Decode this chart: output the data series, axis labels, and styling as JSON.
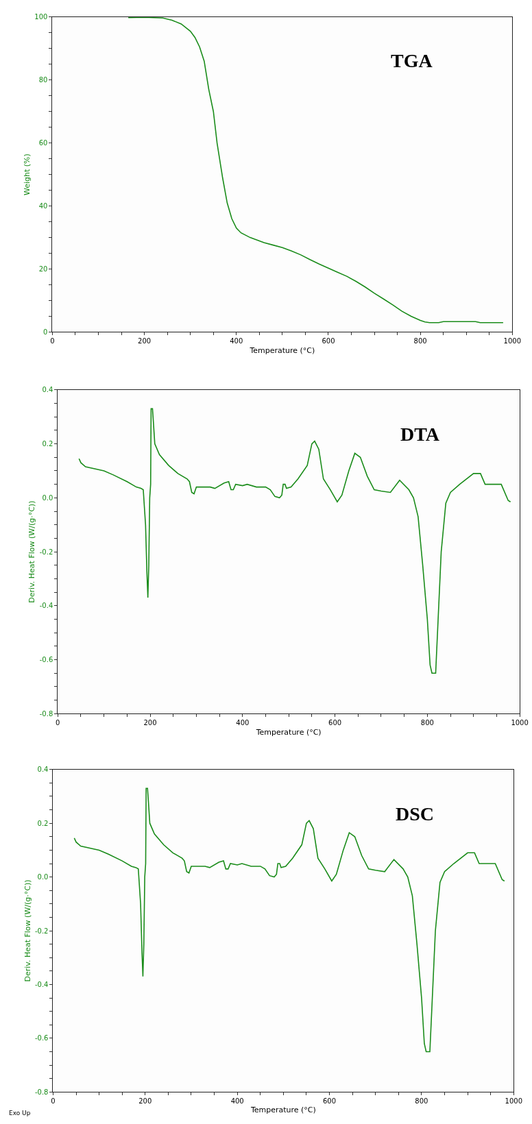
{
  "chart_data": [
    {
      "type": "line",
      "title": "TGA",
      "xlabel": "Temperature (°C)",
      "ylabel": "Weight (%)",
      "color": "#1a8c1a",
      "xlim": [
        0,
        1000
      ],
      "ylim": [
        0,
        100
      ],
      "xticks": [
        0,
        {
          "value": 50,
          "label": null
        },
        {
          "value": 100,
          "label": null
        },
        {
          "value": 150,
          "label": null
        },
        200,
        {
          "value": 250,
          "label": null
        },
        {
          "value": 300,
          "label": null
        },
        {
          "value": 350,
          "label": null
        },
        400,
        {
          "value": 450,
          "label": null
        },
        {
          "value": 500,
          "label": null
        },
        {
          "value": 550,
          "label": null
        },
        600,
        {
          "value": 650,
          "label": null
        },
        {
          "value": 700,
          "label": null
        },
        {
          "value": 750,
          "label": null
        },
        800,
        {
          "value": 850,
          "label": null
        },
        {
          "value": 900,
          "label": null
        },
        {
          "value": 950,
          "label": null
        },
        1000
      ],
      "yticks": [
        0,
        {
          "value": 5,
          "label": null
        },
        {
          "value": 10,
          "label": null
        },
        {
          "value": 15,
          "label": null
        },
        20,
        {
          "value": 25,
          "label": null
        },
        {
          "value": 30,
          "label": null
        },
        {
          "value": 35,
          "label": null
        },
        40,
        {
          "value": 45,
          "label": null
        },
        {
          "value": 50,
          "label": null
        },
        {
          "value": 55,
          "label": null
        },
        60,
        {
          "value": 65,
          "label": null
        },
        {
          "value": 70,
          "label": null
        },
        {
          "value": 75,
          "label": null
        },
        80,
        {
          "value": 85,
          "label": null
        },
        {
          "value": 90,
          "label": null
        },
        {
          "value": 95,
          "label": null
        },
        100
      ],
      "x": [
        165,
        200,
        240,
        260,
        280,
        300,
        310,
        320,
        330,
        340,
        350,
        358,
        370,
        380,
        390,
        400,
        410,
        430,
        460,
        480,
        500,
        520,
        540,
        560,
        580,
        600,
        620,
        640,
        660,
        680,
        700,
        720,
        740,
        760,
        780,
        800,
        810,
        820,
        840,
        850,
        920,
        930,
        980
      ],
      "values": [
        99.8,
        99.9,
        99.7,
        99,
        97.8,
        95.5,
        93.5,
        90.5,
        86,
        77,
        70,
        60,
        49,
        41,
        36,
        33,
        31.5,
        30,
        28.4,
        27.6,
        26.8,
        25.7,
        24.5,
        23,
        21.6,
        20.3,
        19,
        17.7,
        16.1,
        14.3,
        12.3,
        10.5,
        8.6,
        6.6,
        5,
        3.7,
        3.2,
        3.0,
        3.0,
        3.3,
        3.3,
        3.0,
        3.0
      ]
    },
    {
      "type": "line",
      "title": "DTA",
      "xlabel": "Temperature (°C)",
      "ylabel": "Deriv. Heat Flow (W/(g·°C))",
      "color": "#1a8c1a",
      "xlim": [
        0,
        1000
      ],
      "ylim": [
        -0.8,
        0.4
      ],
      "xticks": [
        0,
        {
          "value": 50,
          "label": null
        },
        {
          "value": 100,
          "label": null
        },
        {
          "value": 150,
          "label": null
        },
        200,
        {
          "value": 250,
          "label": null
        },
        {
          "value": 300,
          "label": null
        },
        {
          "value": 350,
          "label": null
        },
        400,
        {
          "value": 450,
          "label": null
        },
        {
          "value": 500,
          "label": null
        },
        {
          "value": 550,
          "label": null
        },
        600,
        {
          "value": 650,
          "label": null
        },
        {
          "value": 700,
          "label": null
        },
        {
          "value": 750,
          "label": null
        },
        800,
        {
          "value": 850,
          "label": null
        },
        {
          "value": 900,
          "label": null
        },
        {
          "value": 950,
          "label": null
        },
        1000
      ],
      "yticks": [
        -0.8,
        {
          "value": -0.75,
          "label": null
        },
        {
          "value": -0.7,
          "label": null
        },
        {
          "value": -0.65,
          "label": null
        },
        -0.6,
        {
          "value": -0.55,
          "label": null
        },
        {
          "value": -0.5,
          "label": null
        },
        {
          "value": -0.45,
          "label": null
        },
        -0.4,
        {
          "value": -0.35,
          "label": null
        },
        {
          "value": -0.3,
          "label": null
        },
        {
          "value": -0.25,
          "label": null
        },
        -0.2,
        {
          "value": -0.15,
          "label": null
        },
        {
          "value": -0.1,
          "label": null
        },
        {
          "value": -0.05,
          "label": null
        },
        {
          "value": 0,
          "label": "0.0"
        },
        {
          "value": 0.05,
          "label": null
        },
        {
          "value": 0.1,
          "label": null
        },
        {
          "value": 0.15,
          "label": null
        },
        0.2,
        {
          "value": 0.25,
          "label": null
        },
        {
          "value": 0.3,
          "label": null
        },
        {
          "value": 0.35,
          "label": null
        },
        0.4
      ],
      "x": [
        46,
        50,
        60,
        100,
        120,
        150,
        170,
        180,
        185,
        190,
        193,
        195,
        197,
        199,
        201,
        202,
        205,
        207,
        210,
        220,
        240,
        260,
        280,
        285,
        290,
        295,
        300,
        330,
        340,
        360,
        370,
        375,
        380,
        385,
        400,
        410,
        430,
        450,
        460,
        470,
        480,
        485,
        488,
        492,
        495,
        505,
        520,
        540,
        550,
        556,
        565,
        575,
        590,
        605,
        615,
        630,
        643,
        655,
        670,
        685,
        700,
        720,
        740,
        760,
        770,
        780,
        790,
        800,
        806,
        810,
        818,
        822,
        830,
        840,
        850,
        870,
        900,
        915,
        925,
        960,
        975,
        980
      ],
      "values": [
        0.145,
        0.13,
        0.115,
        0.1,
        0.085,
        0.06,
        0.04,
        0.035,
        0.03,
        -0.1,
        -0.28,
        -0.37,
        -0.25,
        0.0,
        0.05,
        0.33,
        0.33,
        0.28,
        0.2,
        0.16,
        0.12,
        0.09,
        0.07,
        0.06,
        0.02,
        0.015,
        0.04,
        0.04,
        0.035,
        0.055,
        0.06,
        0.03,
        0.03,
        0.05,
        0.045,
        0.05,
        0.04,
        0.04,
        0.03,
        0.005,
        0.0,
        0.01,
        0.05,
        0.05,
        0.035,
        0.04,
        0.07,
        0.12,
        0.2,
        0.21,
        0.18,
        0.07,
        0.03,
        -0.015,
        0.01,
        0.1,
        0.165,
        0.15,
        0.08,
        0.03,
        0.025,
        0.02,
        0.065,
        0.03,
        0.0,
        -0.07,
        -0.25,
        -0.45,
        -0.62,
        -0.65,
        -0.65,
        -0.5,
        -0.2,
        -0.02,
        0.02,
        0.05,
        0.09,
        0.09,
        0.05,
        0.05,
        -0.01,
        -0.015
      ]
    },
    {
      "type": "line",
      "title": "DSC",
      "xlabel": "Temperature (°C)",
      "ylabel": "Deriv. Heat Flow (W/(g·°C))",
      "color": "#1a8c1a",
      "annotations": [
        "Exo Up"
      ],
      "xlim": [
        0,
        1000
      ],
      "ylim": [
        -0.8,
        0.4
      ],
      "xticks": [
        0,
        {
          "value": 50,
          "label": null
        },
        {
          "value": 100,
          "label": null
        },
        {
          "value": 150,
          "label": null
        },
        200,
        {
          "value": 250,
          "label": null
        },
        {
          "value": 300,
          "label": null
        },
        {
          "value": 350,
          "label": null
        },
        400,
        {
          "value": 450,
          "label": null
        },
        {
          "value": 500,
          "label": null
        },
        {
          "value": 550,
          "label": null
        },
        600,
        {
          "value": 650,
          "label": null
        },
        {
          "value": 700,
          "label": null
        },
        {
          "value": 750,
          "label": null
        },
        800,
        {
          "value": 850,
          "label": null
        },
        {
          "value": 900,
          "label": null
        },
        {
          "value": 950,
          "label": null
        },
        1000
      ],
      "yticks": [
        -0.8,
        {
          "value": -0.75,
          "label": null
        },
        {
          "value": -0.7,
          "label": null
        },
        {
          "value": -0.65,
          "label": null
        },
        -0.6,
        {
          "value": -0.55,
          "label": null
        },
        {
          "value": -0.5,
          "label": null
        },
        {
          "value": -0.45,
          "label": null
        },
        -0.4,
        {
          "value": -0.35,
          "label": null
        },
        {
          "value": -0.3,
          "label": null
        },
        {
          "value": -0.25,
          "label": null
        },
        -0.2,
        {
          "value": -0.15,
          "label": null
        },
        {
          "value": -0.1,
          "label": null
        },
        {
          "value": -0.05,
          "label": null
        },
        {
          "value": 0,
          "label": "0.0"
        },
        {
          "value": 0.05,
          "label": null
        },
        {
          "value": 0.1,
          "label": null
        },
        {
          "value": 0.15,
          "label": null
        },
        0.2,
        {
          "value": 0.25,
          "label": null
        },
        {
          "value": 0.3,
          "label": null
        },
        {
          "value": 0.35,
          "label": null
        },
        0.4
      ],
      "x": [
        46,
        50,
        60,
        100,
        120,
        150,
        170,
        180,
        185,
        190,
        193,
        195,
        197,
        199,
        201,
        202,
        205,
        207,
        210,
        220,
        240,
        260,
        280,
        285,
        290,
        295,
        300,
        330,
        340,
        360,
        370,
        375,
        380,
        385,
        400,
        410,
        430,
        450,
        460,
        470,
        480,
        485,
        488,
        492,
        495,
        505,
        520,
        540,
        550,
        556,
        565,
        575,
        590,
        605,
        615,
        630,
        643,
        655,
        670,
        685,
        700,
        720,
        740,
        760,
        770,
        780,
        790,
        800,
        806,
        810,
        818,
        822,
        830,
        840,
        850,
        870,
        900,
        915,
        925,
        960,
        975,
        980
      ],
      "values": [
        0.145,
        0.13,
        0.115,
        0.1,
        0.085,
        0.06,
        0.04,
        0.035,
        0.03,
        -0.1,
        -0.28,
        -0.37,
        -0.25,
        0.0,
        0.05,
        0.33,
        0.33,
        0.28,
        0.2,
        0.16,
        0.12,
        0.09,
        0.07,
        0.06,
        0.02,
        0.015,
        0.04,
        0.04,
        0.035,
        0.055,
        0.06,
        0.03,
        0.03,
        0.05,
        0.045,
        0.05,
        0.04,
        0.04,
        0.03,
        0.005,
        0.0,
        0.01,
        0.05,
        0.05,
        0.035,
        0.04,
        0.07,
        0.12,
        0.2,
        0.21,
        0.18,
        0.07,
        0.03,
        -0.015,
        0.01,
        0.1,
        0.165,
        0.15,
        0.08,
        0.03,
        0.025,
        0.02,
        0.065,
        0.03,
        0.0,
        -0.07,
        -0.25,
        -0.45,
        -0.62,
        -0.65,
        -0.65,
        -0.5,
        -0.2,
        -0.02,
        0.02,
        0.05,
        0.09,
        0.09,
        0.05,
        0.05,
        -0.01,
        -0.015
      ]
    }
  ]
}
